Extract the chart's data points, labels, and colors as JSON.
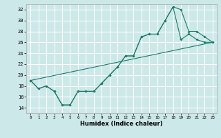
{
  "xlabel": "Humidex (Indice chaleur)",
  "ylabel": "",
  "xlim": [
    -0.5,
    23.5
  ],
  "ylim": [
    13,
    33
  ],
  "yticks": [
    14,
    16,
    18,
    20,
    22,
    24,
    26,
    28,
    30,
    32
  ],
  "xticks": [
    0,
    1,
    2,
    3,
    4,
    5,
    6,
    7,
    8,
    9,
    10,
    11,
    12,
    13,
    14,
    15,
    16,
    17,
    18,
    19,
    20,
    21,
    22,
    23
  ],
  "bg_color": "#cce8e8",
  "grid_color": "#ffffff",
  "line_color": "#1a7a6a",
  "line1_y": [
    19,
    17.5,
    18,
    17,
    14.5,
    14.5,
    17,
    17,
    17,
    18.5,
    20,
    21.5,
    23.5,
    23.5,
    27,
    27.5,
    27.5,
    30,
    32.5,
    32,
    28,
    28,
    27,
    26
  ],
  "line2_y": [
    19,
    17.5,
    18,
    17,
    14.5,
    14.5,
    17,
    17,
    17,
    18.5,
    20,
    21.5,
    23.5,
    23.5,
    27,
    27.5,
    27.5,
    30,
    32.5,
    26.5,
    27.5,
    26.5,
    26,
    26
  ],
  "line3_x": [
    0,
    23
  ],
  "line3_y": [
    19,
    26
  ]
}
